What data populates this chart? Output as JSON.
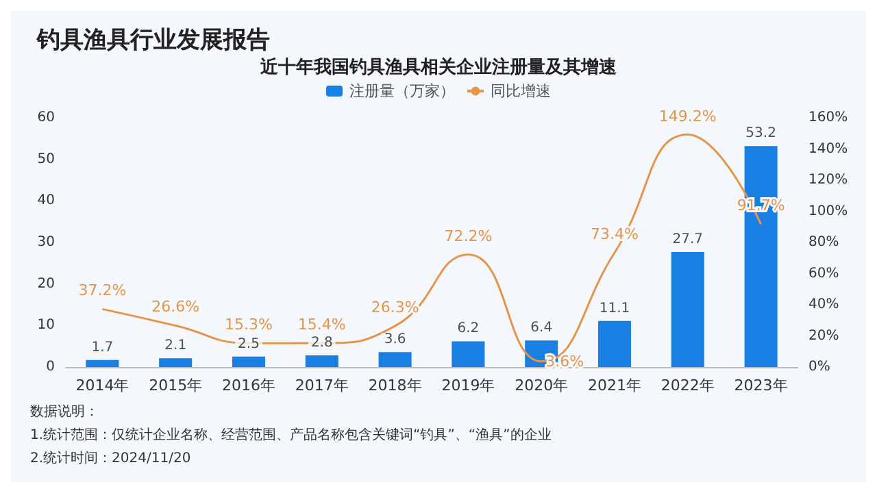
{
  "chart_data": {
    "type": "bar",
    "title": "钓具渔具行业发展报告",
    "subtitle": "近十年我国钓具渔具相关企业注册量及其增速",
    "categories": [
      "2014年",
      "2015年",
      "2016年",
      "2017年",
      "2018年",
      "2019年",
      "2020年",
      "2021年",
      "2022年",
      "2023年"
    ],
    "series": [
      {
        "name": "注册量（万家）",
        "color": "#1a7fe3",
        "values": [
          1.7,
          2.1,
          2.5,
          2.8,
          3.6,
          6.2,
          6.4,
          11.1,
          27.7,
          53.2
        ],
        "value_labels": [
          "1.7",
          "2.1",
          "2.5",
          "2.8",
          "3.6",
          "6.2",
          "6.4",
          "11.1",
          "27.7",
          "53.2"
        ]
      },
      {
        "name": "同比增速",
        "type": "line",
        "axis": "y2",
        "color": "#e59549",
        "values": [
          37.2,
          26.6,
          15.3,
          15.4,
          26.3,
          72.2,
          3.6,
          73.4,
          149.2,
          91.7
        ],
        "value_labels": [
          "37.2%",
          "26.6%",
          "15.3%",
          "15.4%",
          "26.3%",
          "72.2%",
          "3.6%",
          "73.4%",
          "149.2%",
          "91.7%"
        ]
      }
    ],
    "ylim": [
      0,
      60
    ],
    "yticks": [
      0,
      10,
      20,
      30,
      40,
      50,
      60
    ],
    "y2lim": [
      0,
      160
    ],
    "y2ticks": [
      {
        "value": 0,
        "label": "0%"
      },
      {
        "value": 20,
        "label": "20%"
      },
      {
        "value": 40,
        "label": "40%"
      },
      {
        "value": 60,
        "label": "60%"
      },
      {
        "value": 80,
        "label": "80%"
      },
      {
        "value": 100,
        "label": "100%"
      },
      {
        "value": 120,
        "label": "120%"
      },
      {
        "value": 140,
        "label": "140%"
      },
      {
        "value": 160,
        "label": "160%"
      }
    ],
    "legend": "top",
    "grid": false,
    "marker": "none",
    "line_style": "solid",
    "annotations": [
      "数据说明：",
      "1.统计范围：仅统计企业名称、经营范围、产品名称包含关键词“钓具”、“渔具”的企业",
      "2.统计时间：2024/11/20"
    ]
  }
}
